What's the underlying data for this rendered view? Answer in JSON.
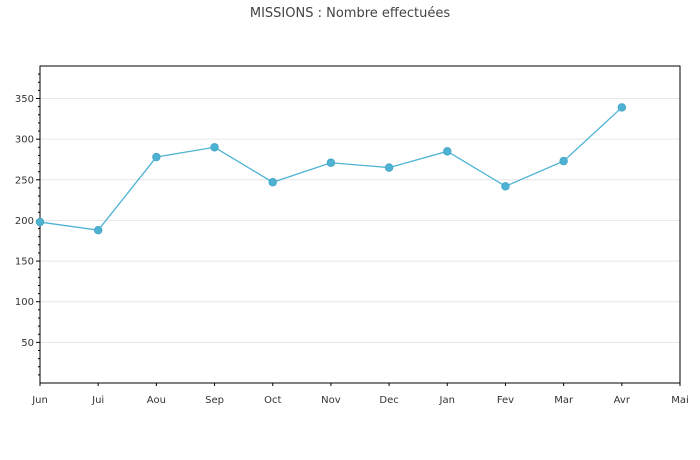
{
  "chart_data": {
    "type": "line",
    "title": "MISSIONS : Nombre effectuées",
    "xlabel": "",
    "ylabel": "",
    "categories": [
      "Jun",
      "Jui",
      "Aou",
      "Sep",
      "Oct",
      "Nov",
      "Dec",
      "Jan",
      "Fev",
      "Mar",
      "Avr",
      "Mai"
    ],
    "series": [
      {
        "values": [
          198,
          188,
          278,
          290,
          247,
          271,
          265,
          285,
          242,
          273,
          339,
          null
        ]
      }
    ],
    "ylim": [
      0,
      390
    ],
    "yticks": [
      50,
      100,
      150,
      200,
      250,
      300,
      350
    ],
    "grid": true,
    "legend": "none",
    "colors": {
      "line": "#4eb3d3",
      "marker": "#4eb3d3",
      "grid": "#e6e6e6",
      "axis": "#000000"
    }
  }
}
